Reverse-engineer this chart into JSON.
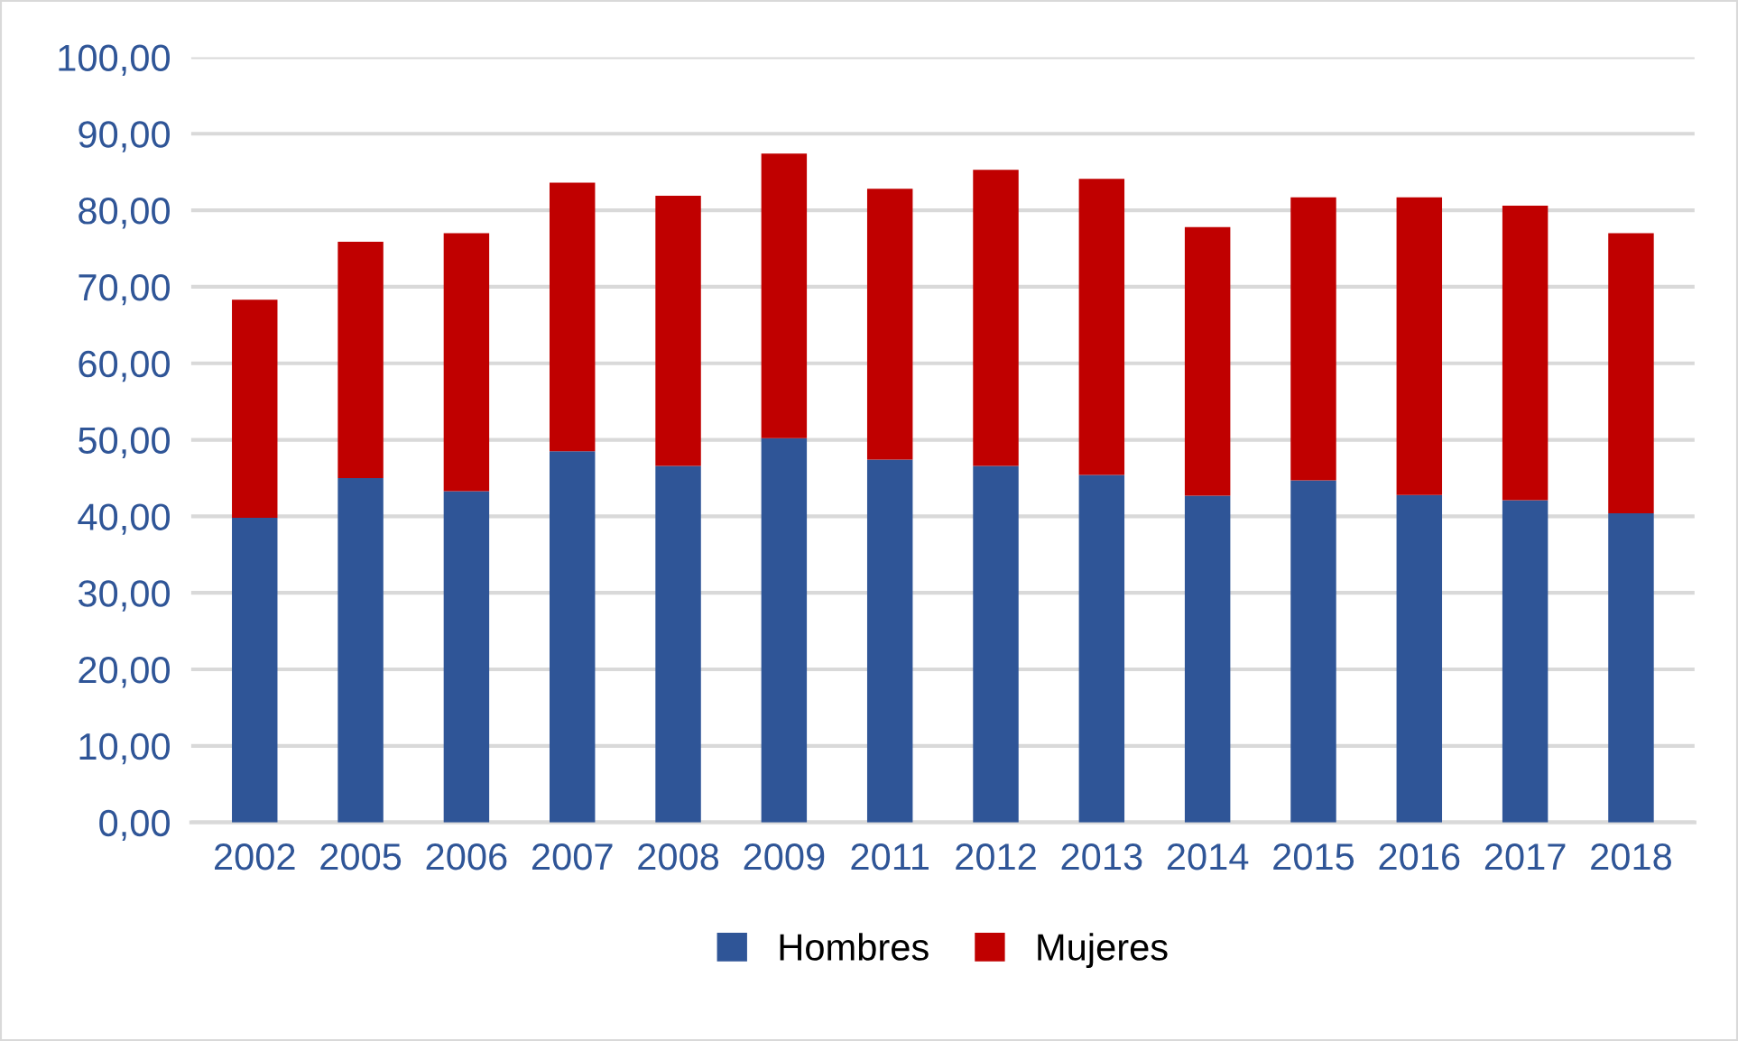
{
  "chart_data": {
    "type": "bar",
    "stacked": true,
    "categories": [
      "2002",
      "2005",
      "2006",
      "2007",
      "2008",
      "2009",
      "2011",
      "2012",
      "2013",
      "2014",
      "2015",
      "2016",
      "2017",
      "2018"
    ],
    "series": [
      {
        "name": "Hombres",
        "color": "#2f5597",
        "values": [
          39.8,
          45.0,
          43.3,
          48.5,
          46.6,
          50.2,
          47.4,
          46.6,
          45.4,
          42.7,
          44.7,
          42.8,
          42.1,
          40.4
        ]
      },
      {
        "name": "Mujeres",
        "color": "#c00000",
        "values": [
          28.5,
          30.9,
          33.7,
          35.1,
          35.3,
          37.2,
          35.4,
          38.7,
          38.7,
          35.1,
          37.0,
          38.9,
          38.5,
          36.6
        ]
      }
    ],
    "ylim": [
      0,
      100
    ],
    "yticks": [
      {
        "value": 0,
        "label": "0,00"
      },
      {
        "value": 10,
        "label": "10,00"
      },
      {
        "value": 20,
        "label": "20,00"
      },
      {
        "value": 30,
        "label": "30,00"
      },
      {
        "value": 40,
        "label": "40,00"
      },
      {
        "value": 50,
        "label": "50,00"
      },
      {
        "value": 60,
        "label": "60,00"
      },
      {
        "value": 70,
        "label": "70,00"
      },
      {
        "value": 80,
        "label": "80,00"
      },
      {
        "value": 90,
        "label": "90,00"
      },
      {
        "value": 100,
        "label": "100,00"
      }
    ],
    "grid": "y",
    "legend": "bottom"
  }
}
